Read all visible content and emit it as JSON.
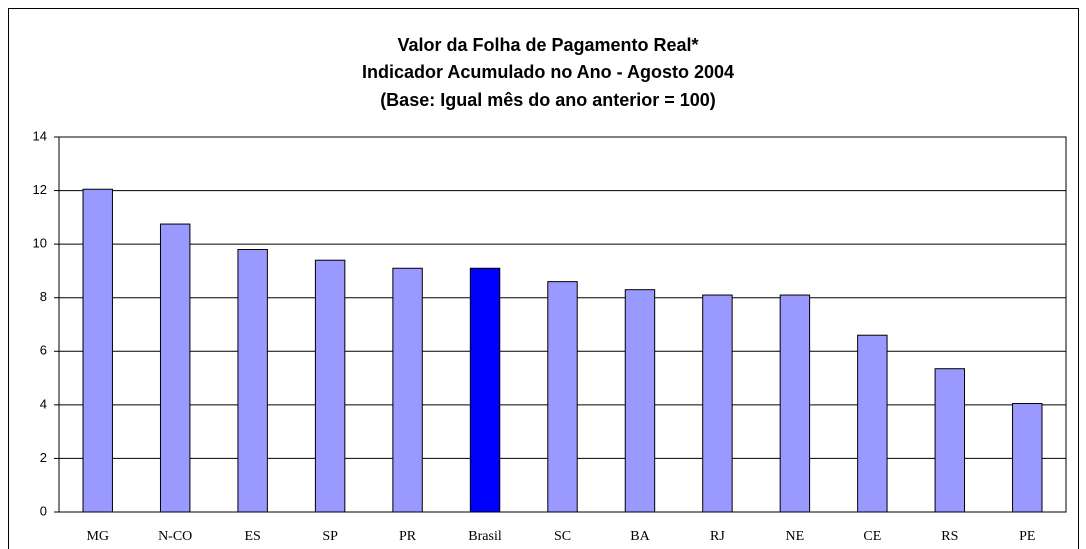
{
  "chart_data": {
    "type": "bar",
    "title": [
      "Valor da Folha de Pagamento Real*",
      "Indicador Acumulado no Ano - Agosto 2004",
      "(Base: Igual mês do ano anterior = 100)"
    ],
    "categories": [
      "MG",
      "N-CO",
      "ES",
      "SP",
      "PR",
      "Brasil",
      "SC",
      "BA",
      "RJ",
      "NE",
      "CE",
      "RS",
      "PE"
    ],
    "values": [
      12.05,
      10.75,
      9.8,
      9.4,
      9.1,
      9.1,
      8.6,
      8.3,
      8.1,
      8.1,
      6.6,
      5.35,
      4.05
    ],
    "colors": [
      "#9999ff",
      "#9999ff",
      "#9999ff",
      "#9999ff",
      "#9999ff",
      "#0000ff",
      "#9999ff",
      "#9999ff",
      "#9999ff",
      "#9999ff",
      "#9999ff",
      "#9999ff",
      "#9999ff"
    ],
    "ylim": [
      0,
      14
    ],
    "yticks": [
      0,
      2,
      4,
      6,
      8,
      10,
      12,
      14
    ],
    "grid": true
  }
}
